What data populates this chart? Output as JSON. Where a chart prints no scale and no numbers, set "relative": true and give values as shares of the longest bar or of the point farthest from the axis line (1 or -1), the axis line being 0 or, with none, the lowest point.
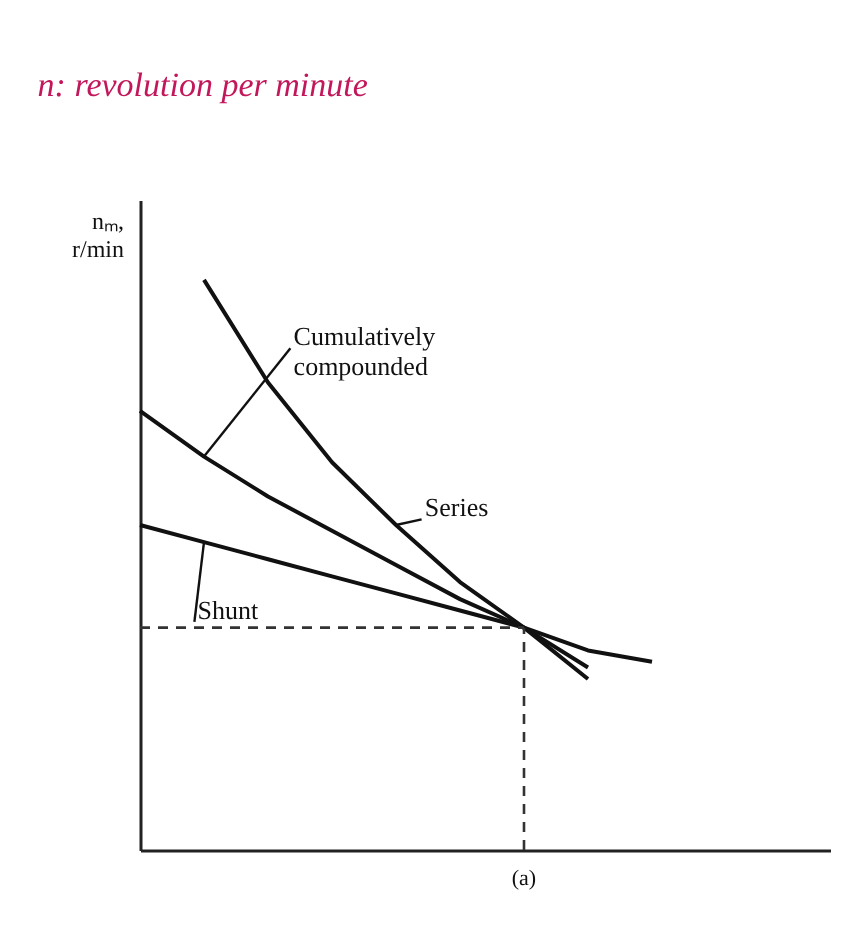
{
  "chart_data": {
    "type": "line",
    "relative": true,
    "ylabel": "nₘ, r/min",
    "categories": [
      null,
      null,
      null,
      null,
      null,
      null,
      null,
      null,
      null
    ],
    "series": [
      {
        "name": "Cumulatively compounded",
        "color": "#111111",
        "values": [
          0.77,
          0.69,
          0.62,
          0.56,
          0.5,
          0.44,
          0.39,
          0.32,
          null
        ]
      },
      {
        "name": "Series",
        "color": "#111111",
        "values": [
          null,
          1.0,
          0.82,
          0.68,
          0.57,
          0.47,
          0.39,
          0.3,
          null
        ]
      },
      {
        "name": "Shunt",
        "color": "#111111",
        "values": [
          0.57,
          0.54,
          0.51,
          0.48,
          0.45,
          0.42,
          0.39,
          0.35,
          0.33
        ]
      },
      {
        "color": "#333333",
        "line_style": "dashed",
        "values": [
          0.39,
          0.39,
          0.39,
          0.39,
          0.39,
          0.39,
          0.39,
          null,
          null
        ]
      }
    ],
    "annotations": [
      "n: revolution per minute",
      "(a)"
    ],
    "grid": false,
    "marker": "none",
    "tick_labels": false
  }
}
